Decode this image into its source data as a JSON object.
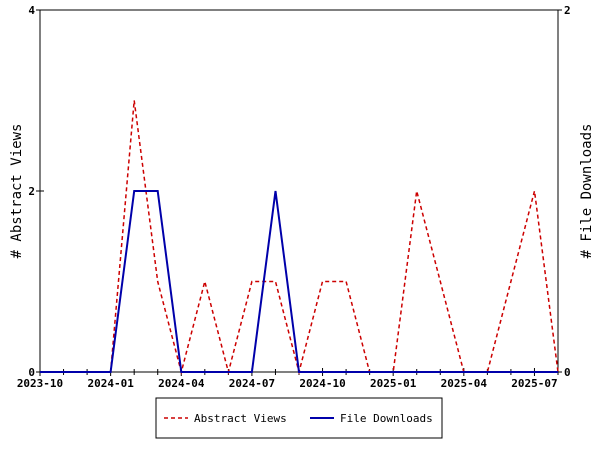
{
  "chart_data": {
    "type": "line",
    "title": "",
    "xlabel": "",
    "ylabel_left": "# Abstract Views",
    "ylabel_right": "# File Downloads",
    "x_tick_labels": [
      "2023-10",
      "2024-01",
      "2024-04",
      "2024-07",
      "2024-10",
      "2025-01",
      "2025-04",
      "2025-07"
    ],
    "x_months": [
      "2023-10",
      "2023-11",
      "2023-12",
      "2024-01",
      "2024-02",
      "2024-03",
      "2024-04",
      "2024-05",
      "2024-06",
      "2024-07",
      "2024-08",
      "2024-09",
      "2024-10",
      "2024-11",
      "2024-12",
      "2025-01",
      "2025-02",
      "2025-03",
      "2025-04",
      "2025-05",
      "2025-06",
      "2025-07",
      "2025-08"
    ],
    "y_left_ticks": [
      "0",
      "2",
      "4"
    ],
    "y_right_ticks": [
      "0",
      "2"
    ],
    "ylim_left": [
      0,
      4
    ],
    "ylim_right": [
      0,
      2
    ],
    "grid": false,
    "legend_position": "bottom",
    "series": [
      {
        "name": "Abstract Views",
        "axis": "left",
        "color": "#cc0000",
        "style": "dashed",
        "points": [
          [
            "2023-10",
            0
          ],
          [
            "2023-11",
            0
          ],
          [
            "2023-12",
            0
          ],
          [
            "2024-01",
            0
          ],
          [
            "2024-02",
            3
          ],
          [
            "2024-03",
            1
          ],
          [
            "2024-04",
            0
          ],
          [
            "2024-05",
            1
          ],
          [
            "2024-06",
            0
          ],
          [
            "2024-07",
            1
          ],
          [
            "2024-08",
            1
          ],
          [
            "2024-09",
            0
          ],
          [
            "2024-10",
            1
          ],
          [
            "2024-11",
            1
          ],
          [
            "2024-12",
            0
          ],
          [
            "2025-01",
            0
          ],
          [
            "2025-02",
            2
          ],
          [
            "2025-03",
            1
          ],
          [
            "2025-04",
            0
          ],
          [
            "2025-05",
            0
          ],
          [
            "2025-06",
            1
          ],
          [
            "2025-07",
            2
          ],
          [
            "2025-08",
            0
          ]
        ]
      },
      {
        "name": "File Downloads",
        "axis": "right",
        "color": "#0000aa",
        "style": "solid",
        "points": [
          [
            "2023-10",
            0
          ],
          [
            "2023-11",
            0
          ],
          [
            "2023-12",
            0
          ],
          [
            "2024-01",
            0
          ],
          [
            "2024-02",
            1
          ],
          [
            "2024-02-15",
            1
          ],
          [
            "2024-03",
            1
          ],
          [
            "2024-04",
            0
          ],
          [
            "2024-05",
            0
          ],
          [
            "2024-06",
            0
          ],
          [
            "2024-07",
            0
          ],
          [
            "2024-08",
            1
          ],
          [
            "2024-09",
            0
          ],
          [
            "2024-10",
            0
          ],
          [
            "2024-11",
            0
          ],
          [
            "2024-12",
            0
          ],
          [
            "2025-01",
            0
          ],
          [
            "2025-02",
            0
          ],
          [
            "2025-03",
            0
          ],
          [
            "2025-04",
            0
          ],
          [
            "2025-05",
            0
          ],
          [
            "2025-06",
            0
          ],
          [
            "2025-07",
            0
          ],
          [
            "2025-08",
            0
          ]
        ]
      }
    ]
  }
}
